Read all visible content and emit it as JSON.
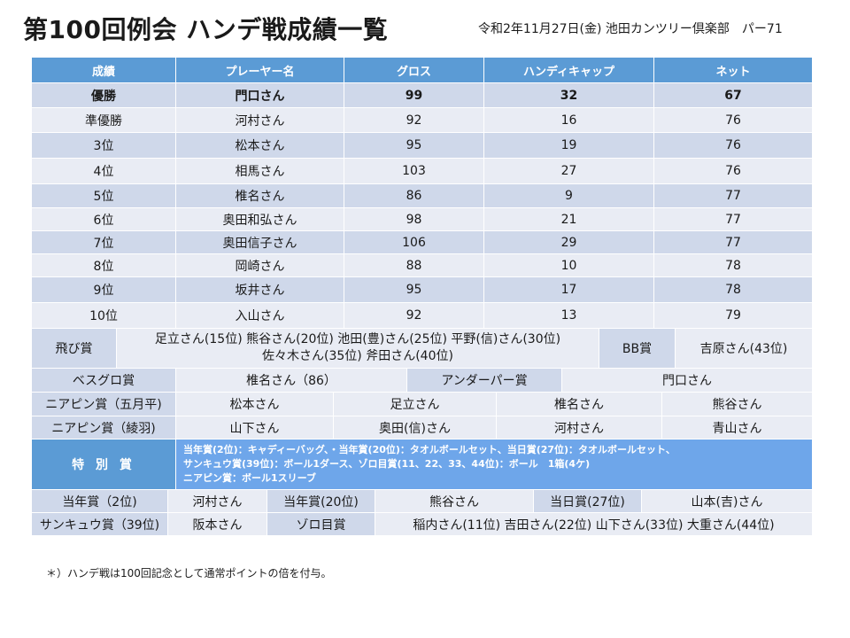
{
  "title": "第100回例会 ハンデ戦成績一覧",
  "subtitle": "令和2年11月27日(金) 池田カンツリー倶楽部　パー71",
  "headers": [
    "成績",
    "プレーヤー名",
    "グロス",
    "ハンディキャップ",
    "ネット"
  ],
  "results": [
    {
      "rank": "優勝",
      "name": "門口さん",
      "gross": "99",
      "handicap": "32",
      "net": "67"
    },
    {
      "rank": "準優勝",
      "name": "河村さん",
      "gross": "92",
      "handicap": "16",
      "net": "76"
    },
    {
      "rank": "3位",
      "name": "松本さん",
      "gross": "95",
      "handicap": "19",
      "net": "76"
    },
    {
      "rank": "4位",
      "name": "相馬さん",
      "gross": "103",
      "handicap": "27",
      "net": "76"
    },
    {
      "rank": "5位",
      "name": "椎名さん",
      "gross": "86",
      "handicap": "9",
      "net": "77"
    },
    {
      "rank": "6位",
      "name": "奥田和弘さん",
      "gross": "98",
      "handicap": "21",
      "net": "77"
    },
    {
      "rank": "7位",
      "name": "奥田信子さん",
      "gross": "106",
      "handicap": "29",
      "net": "77"
    },
    {
      "rank": "8位",
      "name": "岡崎さん",
      "gross": "88",
      "handicap": "10",
      "net": "78"
    },
    {
      "rank": "9位",
      "name": "坂井さん",
      "gross": "95",
      "handicap": "17",
      "net": "78"
    },
    {
      "rank": "10位",
      "name": "入山さん",
      "gross": "92",
      "handicap": "13",
      "net": "79"
    }
  ],
  "tobi": {
    "label": "飛び賞",
    "line1": "足立さん(15位)  熊谷さん(20位)    池田(豊)さん(25位)  平野(信)さん(30位)",
    "line2": "佐々木さん(35位)  斧田さん(40位)",
    "bb_label": "BB賞",
    "bb_value": "吉原さん(43位)"
  },
  "best_gross": {
    "label": "ベスグロ賞",
    "value": "椎名さん（86）",
    "under_label": "アンダーパー賞",
    "under_value": "門口さん"
  },
  "nearpin1": {
    "label": "ニアピン賞（五月平)",
    "values": [
      "松本さん",
      "足立さん",
      "椎名さん",
      "熊谷さん"
    ]
  },
  "nearpin2": {
    "label": "ニアピン賞（綾羽)",
    "values": [
      "山下さん",
      "奥田(信)さん",
      "河村さん",
      "青山さん"
    ]
  },
  "special": {
    "label": "特 別 賞",
    "line1": "当年賞(2位)：キャディーバッグ、・当年賞(20位)：タオルボールセット、当日賞(27位)：タオルボールセット、",
    "line2": "サンキュウ賞(39位)：ボール1ダース、ゾロ目賞(11、22、33、44位)：ボール　1箱(4ケ)",
    "line3": "ニアピン賞：ボール1スリーブ"
  },
  "row_tonen": {
    "label1": "当年賞（2位)",
    "value1": "河村さん",
    "label2": "当年賞(20位)",
    "value2": "熊谷さん",
    "label3": "当日賞(27位)",
    "value3": "山本(吉)さん"
  },
  "row_sankyu": {
    "label1": "サンキュウ賞（39位)",
    "value1": "阪本さん",
    "label2": "ゾロ目賞",
    "value2": "稲内さん(11位)  吉田さん(22位)  山下さん(33位)  大重さん(44位)"
  },
  "footnote": "＊）ハンデ戦は100回記念として通常ポイントの倍を付与。"
}
